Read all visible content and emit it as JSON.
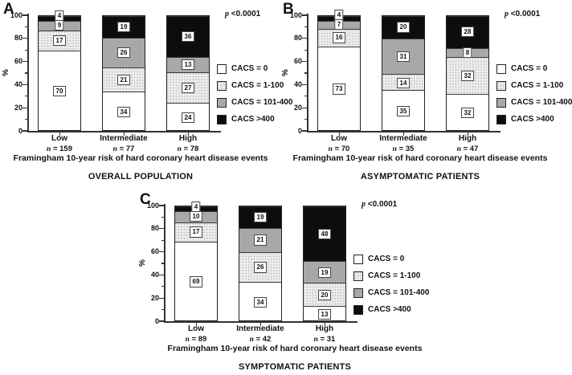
{
  "figure": {
    "background": "#ffffff",
    "colors": {
      "cacs_0": "#ffffff",
      "cacs_1_100": "#ededeb",
      "cacs_101_400": "#a8a8a8",
      "cacs_over_400": "#0d0d0d",
      "axis": "#333333"
    }
  },
  "chart_data": [
    {
      "panel": "A",
      "type": "bar",
      "stacked": true,
      "title": "OVERALL POPULATION",
      "xlabel": "Framingham 10-year risk of hard coronary heart disease events",
      "ylabel": "%",
      "ylim": [
        0,
        100
      ],
      "yticks": [
        0,
        20,
        40,
        60,
        80,
        100
      ],
      "grid": false,
      "p_value": "p <0.0001",
      "legend_position": "right",
      "categories": [
        {
          "label": "Low",
          "n": 159
        },
        {
          "label": "Intermediate",
          "n": 77
        },
        {
          "label": "High",
          "n": 78
        }
      ],
      "series": [
        {
          "name": "CACS = 0",
          "fill": "white",
          "values": [
            70,
            34,
            24
          ]
        },
        {
          "name": "CACS = 1-100",
          "fill": "stipple",
          "values": [
            17,
            21,
            27
          ]
        },
        {
          "name": "CACS = 101-400",
          "fill": "gray",
          "values": [
            9,
            26,
            13
          ]
        },
        {
          "name": "CACS >400",
          "fill": "black",
          "values": [
            4,
            19,
            36
          ]
        }
      ]
    },
    {
      "panel": "B",
      "type": "bar",
      "stacked": true,
      "title": "ASYMPTOMATIC PATIENTS",
      "xlabel": "Framingham 10-year risk of hard coronary heart disease events",
      "ylabel": "%",
      "ylim": [
        0,
        100
      ],
      "yticks": [
        0,
        20,
        40,
        60,
        80,
        100
      ],
      "grid": false,
      "p_value": "p <0.0001",
      "legend_position": "right",
      "categories": [
        {
          "label": "Low",
          "n": 70
        },
        {
          "label": "Intermediate",
          "n": 35
        },
        {
          "label": "High",
          "n": 47
        }
      ],
      "series": [
        {
          "name": "CACS = 0",
          "fill": "white",
          "values": [
            73,
            35,
            32
          ]
        },
        {
          "name": "CACS = 1-100",
          "fill": "stipple",
          "values": [
            16,
            14,
            32
          ]
        },
        {
          "name": "CACS = 101-400",
          "fill": "gray",
          "values": [
            7,
            31,
            8
          ]
        },
        {
          "name": "CACS >400",
          "fill": "black",
          "values": [
            4,
            20,
            28
          ]
        }
      ]
    },
    {
      "panel": "C",
      "type": "bar",
      "stacked": true,
      "title": "SYMPTOMATIC PATIENTS",
      "xlabel": "Framingham 10-year risk of hard coronary heart disease events",
      "ylabel": "%",
      "ylim": [
        0,
        100
      ],
      "yticks": [
        0,
        20,
        40,
        60,
        80,
        100
      ],
      "grid": false,
      "p_value": "p <0.0001",
      "legend_position": "right",
      "categories": [
        {
          "label": "Low",
          "n": 89
        },
        {
          "label": "Intermediate",
          "n": 42
        },
        {
          "label": "High",
          "n": 31
        }
      ],
      "series": [
        {
          "name": "CACS = 0",
          "fill": "white",
          "values": [
            69,
            34,
            13
          ]
        },
        {
          "name": "CACS = 1-100",
          "fill": "stipple",
          "values": [
            17,
            26,
            20
          ]
        },
        {
          "name": "CACS = 101-400",
          "fill": "gray",
          "values": [
            10,
            21,
            19
          ]
        },
        {
          "name": "CACS >400",
          "fill": "black",
          "values": [
            4,
            19,
            48
          ]
        }
      ]
    }
  ]
}
